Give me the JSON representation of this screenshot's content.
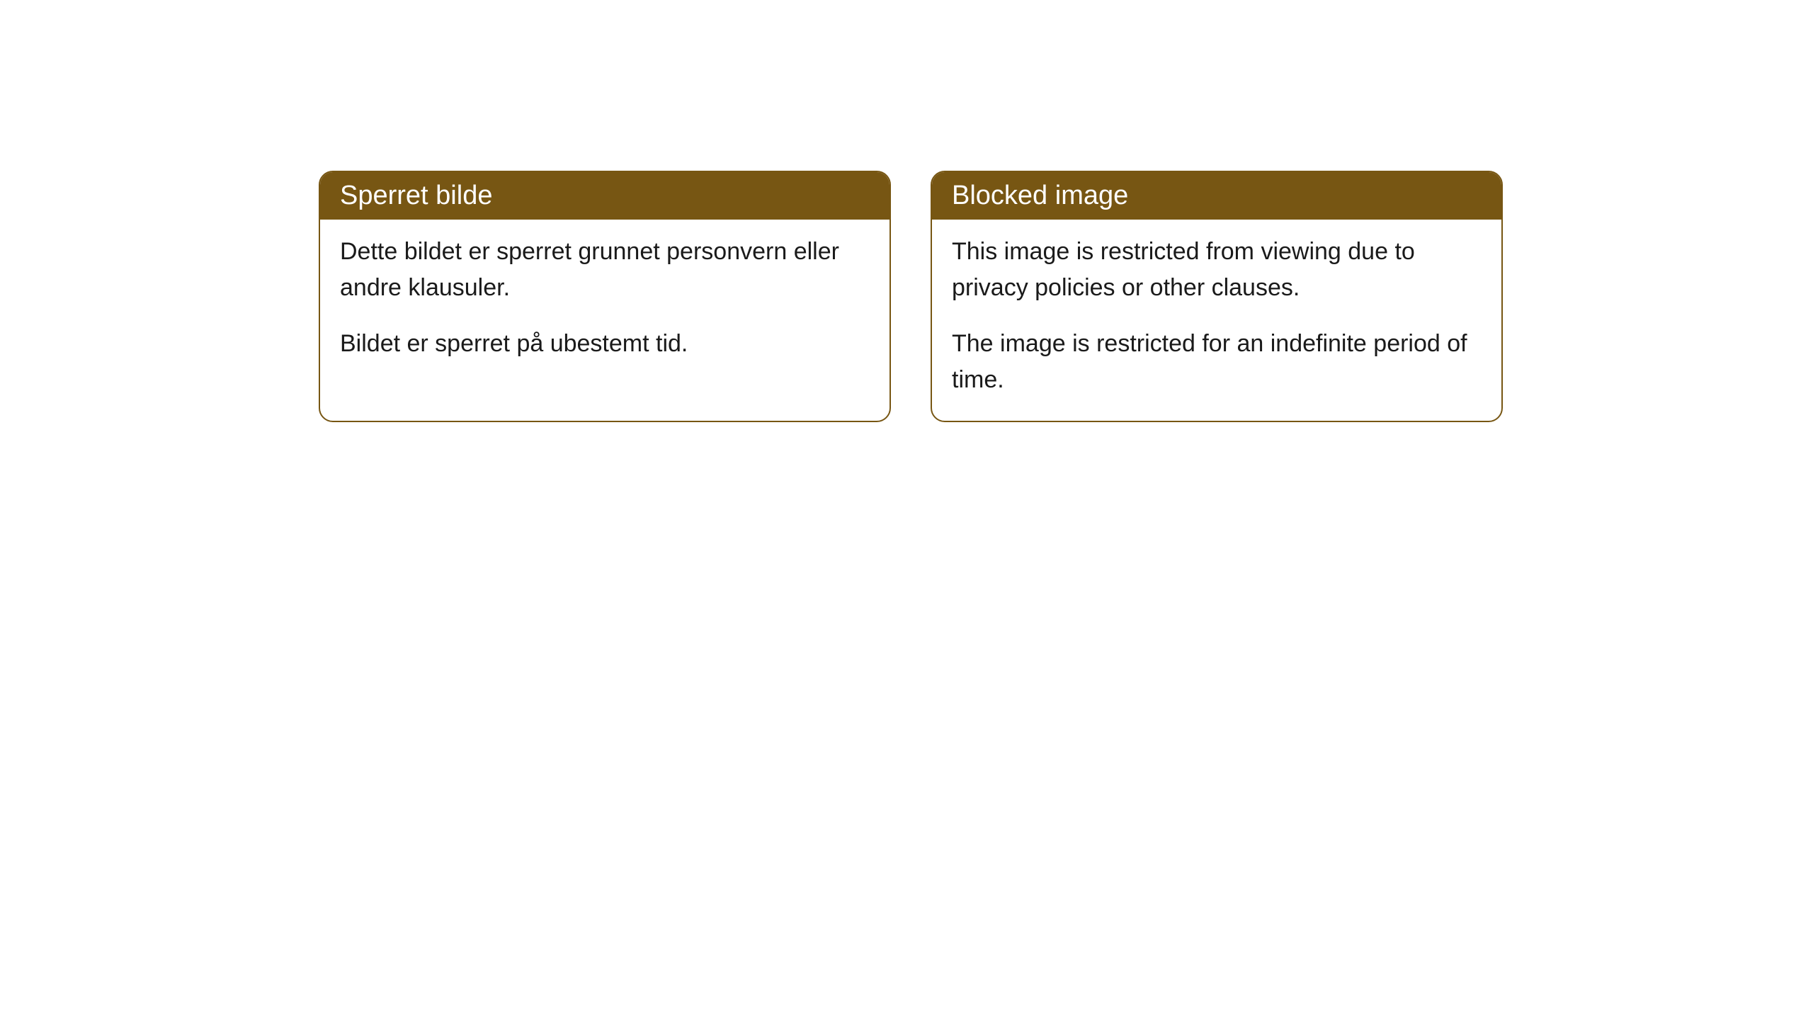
{
  "cards": [
    {
      "title": "Sperret bilde",
      "paragraph1": "Dette bildet er sperret grunnet personvern eller andre klausuler.",
      "paragraph2": "Bildet er sperret på ubestemt tid."
    },
    {
      "title": "Blocked image",
      "paragraph1": "This image is restricted from viewing due to privacy policies or other clauses.",
      "paragraph2": "The image is restricted for an indefinite period of time."
    }
  ],
  "styling": {
    "header_bg_color": "#775613",
    "header_text_color": "#ffffff",
    "border_color": "#775613",
    "body_bg_color": "#ffffff",
    "body_text_color": "#1a1a1a",
    "border_radius": 20,
    "header_fontsize": 38,
    "body_fontsize": 34
  }
}
